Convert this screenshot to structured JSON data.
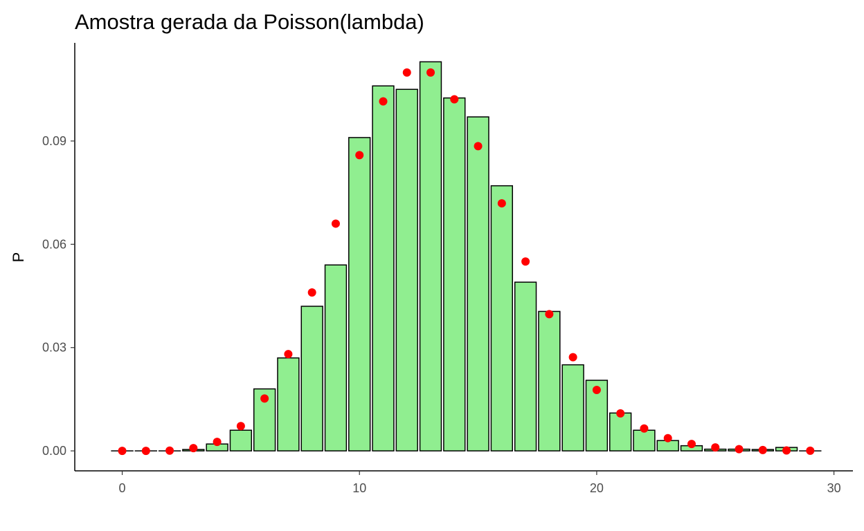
{
  "chart_data": {
    "type": "bar",
    "title": "Amostra gerada da Poisson(lambda)",
    "xlabel": "",
    "ylabel": "P",
    "xlim": [
      -2,
      30.8
    ],
    "ylim": [
      -0.0058,
      0.1185
    ],
    "x_ticks": [
      0,
      10,
      20,
      30
    ],
    "y_ticks": [
      0.0,
      0.03,
      0.06,
      0.09
    ],
    "x_tick_labels": [
      "0",
      "10",
      "20",
      "30"
    ],
    "y_tick_labels": [
      "0.00",
      "0.03",
      "0.06",
      "0.09"
    ],
    "grid": false,
    "legend": "none",
    "colors": {
      "bar_fill": "#90EE90",
      "bar_stroke": "#000000",
      "point": "#FF0000"
    },
    "series": [
      {
        "kind": "bar",
        "x": [
          0,
          1,
          2,
          3,
          4,
          5,
          6,
          7,
          8,
          9,
          10,
          11,
          12,
          13,
          14,
          15,
          16,
          17,
          18,
          19,
          20,
          21,
          22,
          23,
          24,
          25,
          26,
          27,
          28,
          29
        ],
        "values": [
          0,
          0,
          0,
          0.0004,
          0.002,
          0.006,
          0.018,
          0.027,
          0.042,
          0.054,
          0.091,
          0.106,
          0.105,
          0.113,
          0.1025,
          0.097,
          0.077,
          0.049,
          0.0405,
          0.025,
          0.0205,
          0.011,
          0.006,
          0.003,
          0.0015,
          0.0005,
          0.0005,
          0.0004,
          0.001,
          0
        ]
      },
      {
        "kind": "points",
        "x": [
          0,
          1,
          2,
          3,
          4,
          5,
          6,
          7,
          8,
          9,
          10,
          11,
          12,
          13,
          14,
          15,
          16,
          17,
          18,
          19,
          20,
          21,
          22,
          23,
          24,
          25,
          26,
          27,
          28,
          29
        ],
        "values": [
          0,
          0,
          7e-05,
          0.0008,
          0.0026,
          0.0072,
          0.0152,
          0.0281,
          0.046,
          0.066,
          0.0859,
          0.1015,
          0.1099,
          0.1099,
          0.1021,
          0.0885,
          0.0719,
          0.055,
          0.0397,
          0.0272,
          0.0177,
          0.0109,
          0.0065,
          0.0037,
          0.002,
          0.001,
          0.0005,
          0.00025,
          0.00012,
          5e-05
        ]
      }
    ]
  }
}
